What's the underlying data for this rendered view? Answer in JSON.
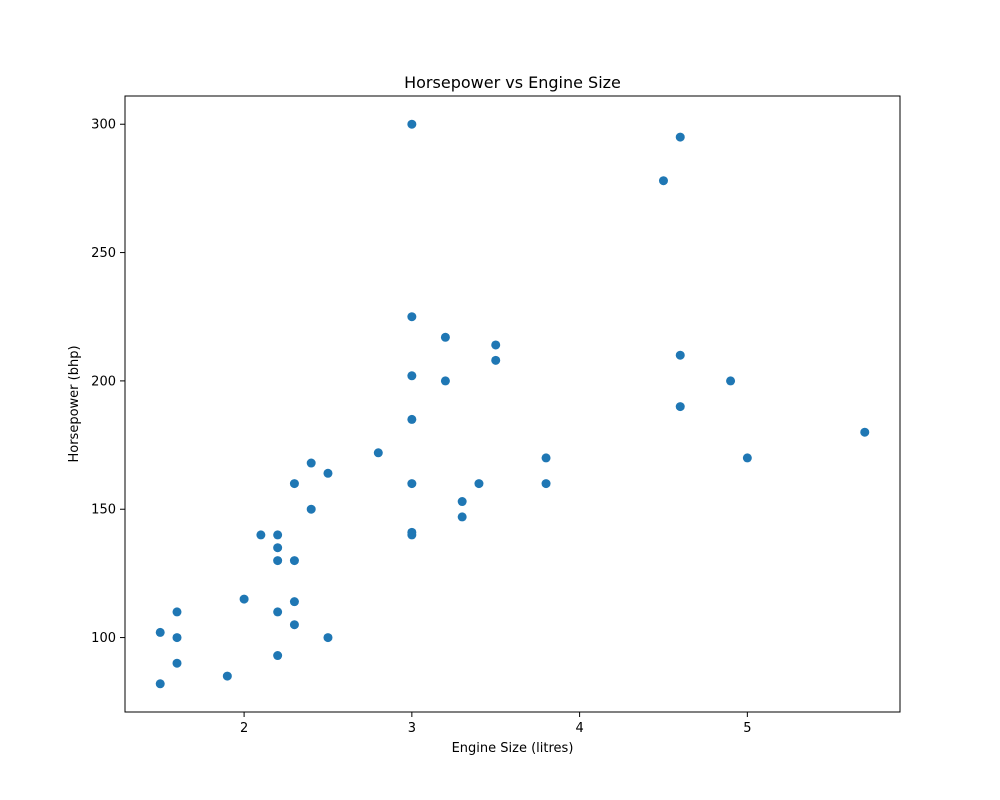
{
  "chart_data": {
    "type": "scatter",
    "title": "Horsepower vs Engine Size",
    "xlabel": "Engine Size (litres)",
    "ylabel": "Horsepower (bhp)",
    "xlim": [
      1.29,
      5.91
    ],
    "ylim": [
      71,
      311
    ],
    "xticks": [
      2,
      3,
      4,
      5
    ],
    "yticks": [
      100,
      150,
      200,
      250,
      300
    ],
    "grid": false,
    "color": "#1f77b4",
    "points": [
      {
        "x": 1.5,
        "y": 102
      },
      {
        "x": 1.5,
        "y": 82
      },
      {
        "x": 1.6,
        "y": 110
      },
      {
        "x": 1.6,
        "y": 100
      },
      {
        "x": 1.6,
        "y": 90
      },
      {
        "x": 1.9,
        "y": 85
      },
      {
        "x": 2.0,
        "y": 115
      },
      {
        "x": 2.1,
        "y": 140
      },
      {
        "x": 2.2,
        "y": 140
      },
      {
        "x": 2.2,
        "y": 135
      },
      {
        "x": 2.2,
        "y": 130
      },
      {
        "x": 2.2,
        "y": 110
      },
      {
        "x": 2.2,
        "y": 93
      },
      {
        "x": 2.3,
        "y": 160
      },
      {
        "x": 2.3,
        "y": 130
      },
      {
        "x": 2.3,
        "y": 114
      },
      {
        "x": 2.3,
        "y": 105
      },
      {
        "x": 2.4,
        "y": 168
      },
      {
        "x": 2.4,
        "y": 150
      },
      {
        "x": 2.5,
        "y": 164
      },
      {
        "x": 2.5,
        "y": 100
      },
      {
        "x": 2.8,
        "y": 172
      },
      {
        "x": 3.0,
        "y": 300
      },
      {
        "x": 3.0,
        "y": 225
      },
      {
        "x": 3.0,
        "y": 202
      },
      {
        "x": 3.0,
        "y": 185
      },
      {
        "x": 3.0,
        "y": 160
      },
      {
        "x": 3.0,
        "y": 141
      },
      {
        "x": 3.0,
        "y": 140
      },
      {
        "x": 3.2,
        "y": 217
      },
      {
        "x": 3.2,
        "y": 200
      },
      {
        "x": 3.3,
        "y": 153
      },
      {
        "x": 3.3,
        "y": 147
      },
      {
        "x": 3.4,
        "y": 160
      },
      {
        "x": 3.5,
        "y": 214
      },
      {
        "x": 3.5,
        "y": 208
      },
      {
        "x": 3.8,
        "y": 170
      },
      {
        "x": 3.8,
        "y": 160
      },
      {
        "x": 4.5,
        "y": 278
      },
      {
        "x": 4.6,
        "y": 295
      },
      {
        "x": 4.6,
        "y": 210
      },
      {
        "x": 4.6,
        "y": 190
      },
      {
        "x": 4.9,
        "y": 200
      },
      {
        "x": 5.0,
        "y": 170
      },
      {
        "x": 5.7,
        "y": 180
      }
    ]
  }
}
